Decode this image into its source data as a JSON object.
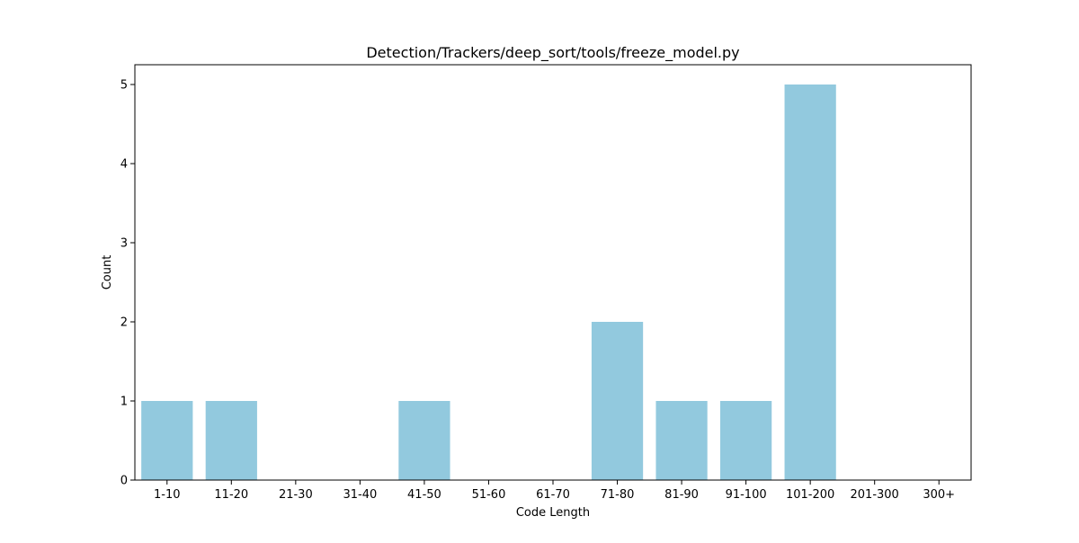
{
  "chart_data": {
    "type": "bar",
    "title": "Detection/Trackers/deep_sort/tools/freeze_model.py",
    "xlabel": "Code Length",
    "ylabel": "Count",
    "categories": [
      "1-10",
      "11-20",
      "21-30",
      "31-40",
      "41-50",
      "51-60",
      "61-70",
      "71-80",
      "81-90",
      "91-100",
      "101-200",
      "201-300",
      "300+"
    ],
    "values": [
      1,
      1,
      0,
      0,
      1,
      0,
      0,
      2,
      1,
      1,
      5,
      0,
      0
    ],
    "yticks": [
      0,
      1,
      2,
      3,
      4,
      5
    ],
    "ylim": [
      0,
      5.25
    ],
    "grid": false,
    "bar_color": "#92c9de"
  }
}
